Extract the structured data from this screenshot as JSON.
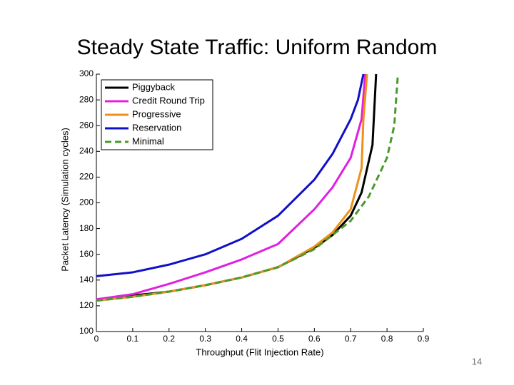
{
  "chart_data": {
    "type": "line",
    "title": "Steady State Traffic: Uniform Random",
    "x_label": "Throughput (Flit Injection Rate)",
    "y_label": "Packet Latency (Simulation cycles)",
    "xlim": [
      0,
      0.9
    ],
    "xticks": [
      0,
      0.1,
      0.2,
      0.3,
      0.4,
      0.5,
      0.6,
      0.7,
      0.8,
      0.9
    ],
    "ylim": [
      100,
      300
    ],
    "yticks": [
      100,
      120,
      140,
      160,
      180,
      200,
      220,
      240,
      260,
      280,
      300
    ],
    "legend": "upper left",
    "series": [
      {
        "name": "Piggyback",
        "color": "#000000",
        "dash": false,
        "x": [
          0,
          0.1,
          0.2,
          0.3,
          0.4,
          0.5,
          0.6,
          0.65,
          0.7,
          0.73,
          0.76,
          0.77
        ],
        "values": [
          125,
          128,
          131,
          136,
          142,
          150,
          165,
          175,
          190,
          208,
          245,
          300
        ]
      },
      {
        "name": "Credit Round Trip",
        "color": "#e020e0",
        "dash": false,
        "x": [
          0,
          0.1,
          0.2,
          0.3,
          0.4,
          0.5,
          0.6,
          0.65,
          0.7,
          0.73,
          0.74
        ],
        "values": [
          125,
          129,
          137,
          146,
          156,
          168,
          195,
          212,
          235,
          265,
          300
        ]
      },
      {
        "name": "Progressive",
        "color": "#f0901a",
        "dash": false,
        "x": [
          0,
          0.1,
          0.2,
          0.3,
          0.4,
          0.5,
          0.6,
          0.65,
          0.7,
          0.73,
          0.735,
          0.745
        ],
        "values": [
          124,
          127,
          131,
          136,
          142,
          150,
          166,
          177,
          195,
          227,
          265,
          300
        ]
      },
      {
        "name": "Reservation",
        "color": "#1010c8",
        "dash": false,
        "x": [
          0,
          0.1,
          0.2,
          0.3,
          0.4,
          0.5,
          0.6,
          0.65,
          0.7,
          0.72,
          0.735
        ],
        "values": [
          143,
          146,
          152,
          160,
          172,
          190,
          218,
          238,
          265,
          280,
          300
        ]
      },
      {
        "name": "Minimal",
        "color": "#4a9a2a",
        "dash": true,
        "x": [
          0,
          0.1,
          0.2,
          0.3,
          0.4,
          0.5,
          0.6,
          0.7,
          0.75,
          0.8,
          0.82,
          0.83
        ],
        "values": [
          124,
          127,
          131,
          136,
          142,
          150,
          164,
          186,
          205,
          235,
          260,
          300
        ]
      }
    ]
  },
  "slide_number": "14"
}
